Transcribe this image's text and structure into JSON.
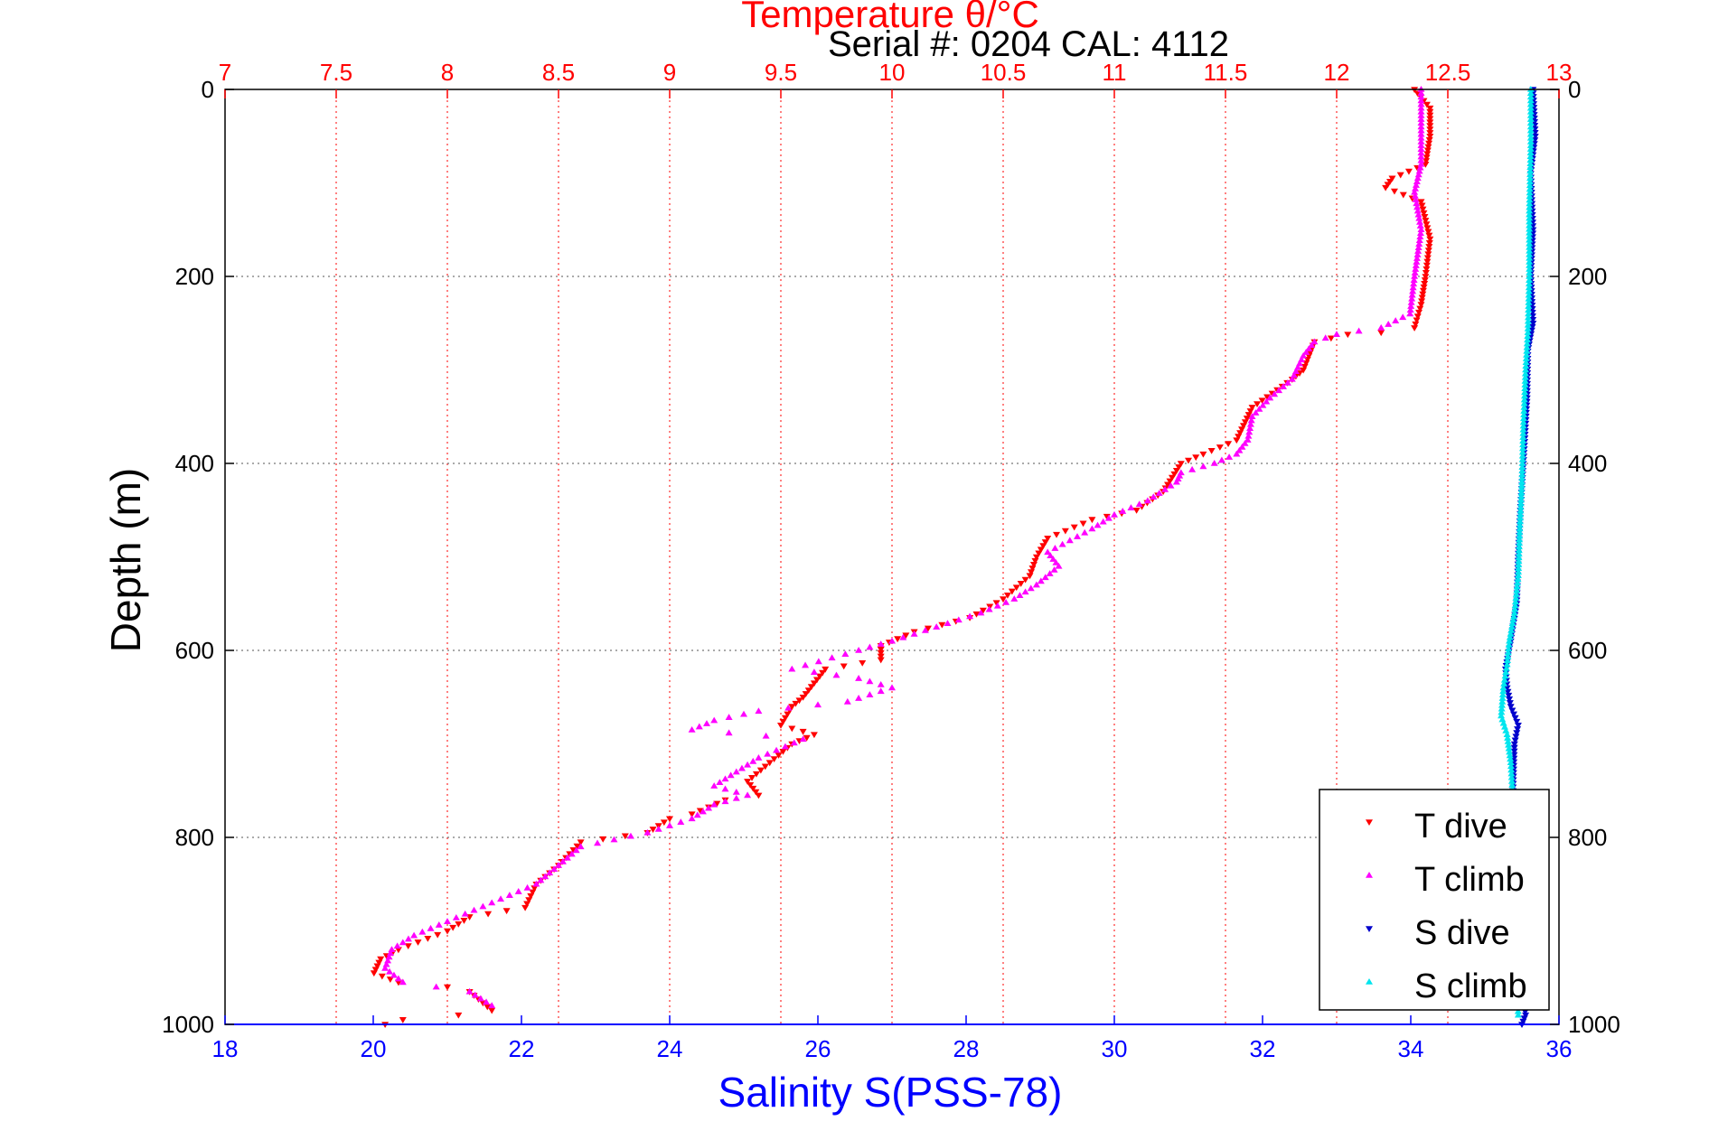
{
  "header": {
    "serial_text": "Serial #: 0204  CAL: 4112"
  },
  "colors": {
    "temperature_axis": "#ff0000",
    "salinity_axis": "#0000ff",
    "depth_axis": "#000000",
    "t_dive": "#ff0000",
    "t_climb": "#ff00ff",
    "s_dive": "#0000cc",
    "s_climb": "#00e5ee"
  },
  "chart_data": {
    "type": "scatter",
    "title": "Temperature θ/°C",
    "top_axis": {
      "label": "Temperature θ/°C",
      "range": [
        7,
        13
      ],
      "ticks": [
        "7",
        "7.5",
        "8",
        "8.5",
        "9",
        "9.5",
        "10",
        "10.5",
        "11",
        "11.5",
        "12",
        "12.5",
        "13"
      ]
    },
    "bottom_axis": {
      "label": "Salinity S(PSS-78)",
      "range": [
        18,
        36
      ],
      "ticks": [
        "18",
        "20",
        "22",
        "24",
        "26",
        "28",
        "30",
        "32",
        "34",
        "36"
      ]
    },
    "y_axis": {
      "label": "Depth (m)",
      "range": [
        0,
        1000
      ],
      "reversed": true,
      "ticks": [
        "0",
        "200",
        "400",
        "600",
        "800",
        "1000"
      ]
    },
    "grid": true,
    "legend_position": "bottom-right",
    "series": [
      {
        "name": "T dive",
        "axis": "temperature",
        "marker": "triangle-down",
        "points": [
          [
            12.35,
            0
          ],
          [
            12.42,
            20
          ],
          [
            12.42,
            50
          ],
          [
            12.4,
            80
          ],
          [
            12.25,
            95
          ],
          [
            12.22,
            105
          ],
          [
            12.38,
            120
          ],
          [
            12.42,
            160
          ],
          [
            12.4,
            200
          ],
          [
            12.38,
            230
          ],
          [
            12.35,
            255
          ],
          [
            12.2,
            260
          ],
          [
            12.05,
            262
          ],
          [
            11.9,
            270
          ],
          [
            11.85,
            300
          ],
          [
            11.8,
            310
          ],
          [
            11.62,
            340
          ],
          [
            11.55,
            375
          ],
          [
            11.4,
            390
          ],
          [
            11.3,
            400
          ],
          [
            11.22,
            430
          ],
          [
            11.1,
            450
          ],
          [
            10.9,
            460
          ],
          [
            10.7,
            480
          ],
          [
            10.65,
            500
          ],
          [
            10.62,
            520
          ],
          [
            10.5,
            545
          ],
          [
            10.35,
            565
          ],
          [
            10.1,
            580
          ],
          [
            9.95,
            595
          ],
          [
            9.95,
            610
          ],
          [
            9.7,
            620
          ],
          [
            9.6,
            650
          ],
          [
            9.55,
            660
          ],
          [
            9.5,
            680
          ],
          [
            9.65,
            690
          ],
          [
            9.55,
            700
          ],
          [
            9.45,
            720
          ],
          [
            9.35,
            740
          ],
          [
            9.4,
            755
          ],
          [
            9.25,
            760
          ],
          [
            9.1,
            775
          ],
          [
            9.0,
            780
          ],
          [
            8.9,
            795
          ],
          [
            8.6,
            805
          ],
          [
            8.5,
            830
          ],
          [
            8.4,
            850
          ],
          [
            8.35,
            875
          ],
          [
            8.1,
            885
          ],
          [
            8.0,
            900
          ],
          [
            7.78,
            920
          ],
          [
            7.7,
            930
          ],
          [
            7.67,
            945
          ],
          [
            7.78,
            955
          ],
          [
            8.0,
            960
          ],
          [
            8.1,
            965
          ],
          [
            8.2,
            985
          ],
          [
            8.05,
            990
          ],
          [
            7.8,
            995
          ],
          [
            7.72,
            1000
          ]
        ]
      },
      {
        "name": "T climb",
        "axis": "temperature",
        "marker": "triangle-up",
        "points": [
          [
            12.38,
            0
          ],
          [
            12.38,
            40
          ],
          [
            12.38,
            80
          ],
          [
            12.35,
            110
          ],
          [
            12.38,
            150
          ],
          [
            12.35,
            200
          ],
          [
            12.33,
            240
          ],
          [
            12.2,
            255
          ],
          [
            12.0,
            262
          ],
          [
            11.9,
            270
          ],
          [
            11.85,
            285
          ],
          [
            11.8,
            310
          ],
          [
            11.7,
            330
          ],
          [
            11.62,
            350
          ],
          [
            11.6,
            375
          ],
          [
            11.55,
            390
          ],
          [
            11.45,
            400
          ],
          [
            11.3,
            410
          ],
          [
            11.28,
            420
          ],
          [
            11.15,
            440
          ],
          [
            11.0,
            455
          ],
          [
            10.9,
            470
          ],
          [
            10.7,
            495
          ],
          [
            10.75,
            510
          ],
          [
            10.65,
            530
          ],
          [
            10.55,
            545
          ],
          [
            10.4,
            560
          ],
          [
            10.2,
            575
          ],
          [
            10.0,
            590
          ],
          [
            9.85,
            600
          ],
          [
            9.55,
            620
          ],
          [
            9.85,
            630
          ],
          [
            10.0,
            640
          ],
          [
            9.8,
            655
          ],
          [
            9.4,
            665
          ],
          [
            9.2,
            675
          ],
          [
            9.1,
            685
          ],
          [
            9.6,
            695
          ],
          [
            9.4,
            715
          ],
          [
            9.3,
            730
          ],
          [
            9.2,
            745
          ],
          [
            9.35,
            755
          ],
          [
            9.2,
            765
          ],
          [
            9.1,
            780
          ],
          [
            8.9,
            795
          ],
          [
            8.6,
            810
          ],
          [
            8.5,
            830
          ],
          [
            8.4,
            850
          ],
          [
            8.2,
            870
          ],
          [
            8.0,
            890
          ],
          [
            7.85,
            905
          ],
          [
            7.75,
            920
          ],
          [
            7.72,
            940
          ],
          [
            7.8,
            955
          ],
          [
            7.95,
            960
          ],
          [
            8.1,
            965
          ],
          [
            8.2,
            980
          ]
        ]
      },
      {
        "name": "S dive",
        "axis": "salinity",
        "marker": "triangle-down",
        "points": [
          [
            35.65,
            0
          ],
          [
            35.68,
            50
          ],
          [
            35.62,
            90
          ],
          [
            35.65,
            150
          ],
          [
            35.62,
            200
          ],
          [
            35.65,
            250
          ],
          [
            35.58,
            280
          ],
          [
            35.57,
            330
          ],
          [
            35.52,
            400
          ],
          [
            35.48,
            450
          ],
          [
            35.45,
            500
          ],
          [
            35.43,
            550
          ],
          [
            35.35,
            590
          ],
          [
            35.28,
            620
          ],
          [
            35.3,
            640
          ],
          [
            35.35,
            660
          ],
          [
            35.45,
            680
          ],
          [
            35.4,
            700
          ],
          [
            35.38,
            750
          ],
          [
            35.42,
            800
          ],
          [
            35.43,
            850
          ],
          [
            35.45,
            900
          ],
          [
            35.5,
            960
          ],
          [
            35.55,
            990
          ],
          [
            35.5,
            1000
          ]
        ]
      },
      {
        "name": "S climb",
        "axis": "salinity",
        "marker": "triangle-up",
        "points": [
          [
            35.62,
            0
          ],
          [
            35.62,
            60
          ],
          [
            35.6,
            130
          ],
          [
            35.6,
            200
          ],
          [
            35.58,
            260
          ],
          [
            35.55,
            300
          ],
          [
            35.52,
            360
          ],
          [
            35.5,
            420
          ],
          [
            35.47,
            470
          ],
          [
            35.45,
            520
          ],
          [
            35.4,
            560
          ],
          [
            35.33,
            590
          ],
          [
            35.3,
            615
          ],
          [
            35.25,
            640
          ],
          [
            35.22,
            670
          ],
          [
            35.3,
            690
          ],
          [
            35.35,
            720
          ],
          [
            35.38,
            760
          ],
          [
            35.4,
            820
          ],
          [
            35.42,
            880
          ],
          [
            35.43,
            940
          ],
          [
            35.45,
            990
          ]
        ]
      }
    ]
  }
}
